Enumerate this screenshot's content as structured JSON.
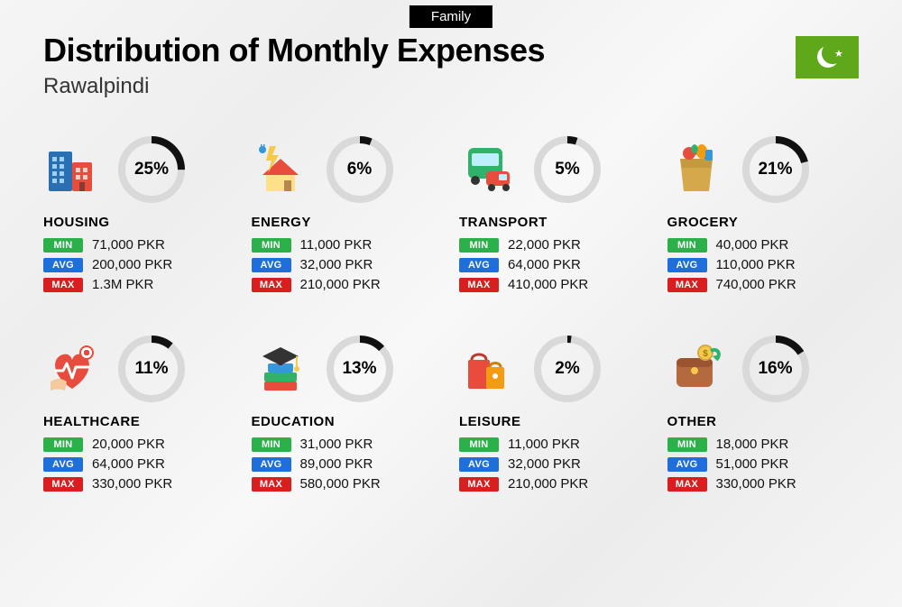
{
  "tag": "Family",
  "title": "Distribution of Monthly Expenses",
  "subtitle": "Rawalpindi",
  "flag": {
    "bg": "#5ea819"
  },
  "badges": {
    "min": {
      "label": "MIN",
      "color": "#2bb04a"
    },
    "avg": {
      "label": "AVG",
      "color": "#1e6fd9"
    },
    "max": {
      "label": "MAX",
      "color": "#d81e1e"
    }
  },
  "donut": {
    "track_color": "#d9d9d9",
    "fill_color": "#111111",
    "stroke_width": 8,
    "radius": 33
  },
  "categories": [
    {
      "id": "housing",
      "name": "HOUSING",
      "pct": 25,
      "min": "71,000 PKR",
      "avg": "200,000 PKR",
      "max": "1.3M PKR",
      "icon": "housing"
    },
    {
      "id": "energy",
      "name": "ENERGY",
      "pct": 6,
      "min": "11,000 PKR",
      "avg": "32,000 PKR",
      "max": "210,000 PKR",
      "icon": "energy"
    },
    {
      "id": "transport",
      "name": "TRANSPORT",
      "pct": 5,
      "min": "22,000 PKR",
      "avg": "64,000 PKR",
      "max": "410,000 PKR",
      "icon": "transport"
    },
    {
      "id": "grocery",
      "name": "GROCERY",
      "pct": 21,
      "min": "40,000 PKR",
      "avg": "110,000 PKR",
      "max": "740,000 PKR",
      "icon": "grocery"
    },
    {
      "id": "healthcare",
      "name": "HEALTHCARE",
      "pct": 11,
      "min": "20,000 PKR",
      "avg": "64,000 PKR",
      "max": "330,000 PKR",
      "icon": "healthcare"
    },
    {
      "id": "education",
      "name": "EDUCATION",
      "pct": 13,
      "min": "31,000 PKR",
      "avg": "89,000 PKR",
      "max": "580,000 PKR",
      "icon": "education"
    },
    {
      "id": "leisure",
      "name": "LEISURE",
      "pct": 2,
      "min": "11,000 PKR",
      "avg": "32,000 PKR",
      "max": "210,000 PKR",
      "icon": "leisure"
    },
    {
      "id": "other",
      "name": "OTHER",
      "pct": 16,
      "min": "18,000 PKR",
      "avg": "51,000 PKR",
      "max": "330,000 PKR",
      "icon": "other"
    }
  ]
}
